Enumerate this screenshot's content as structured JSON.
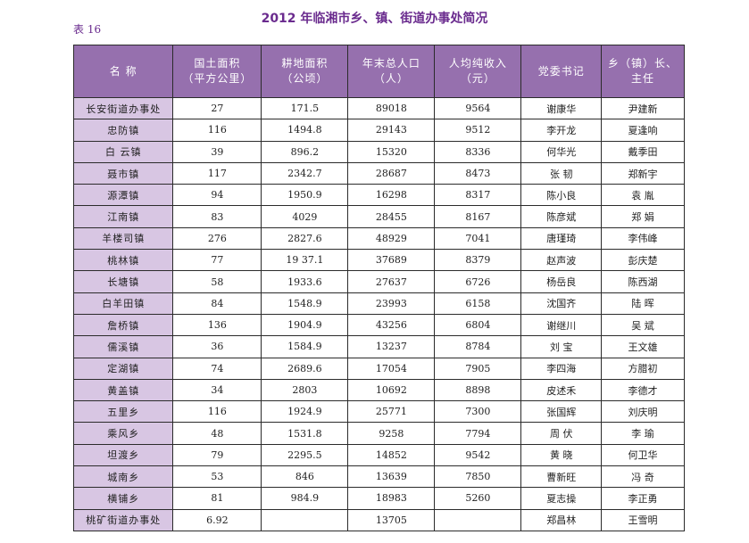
{
  "title": "2012 年临湘市乡、镇、街道办事处简况",
  "table_label": "表 16",
  "headers": [
    {
      "line1": "名  称",
      "line2": ""
    },
    {
      "line1": "国土面积",
      "line2": "（平方公里）"
    },
    {
      "line1": "耕地面积",
      "line2": "（公顷）"
    },
    {
      "line1": "年末总人口",
      "line2": "（人）"
    },
    {
      "line1": "人均纯收入",
      "line2": "（元）"
    },
    {
      "line1": "党委书记",
      "line2": ""
    },
    {
      "line1": "乡（镇）长、",
      "line2": "主任"
    }
  ],
  "rows": [
    [
      "长安街道办事处",
      "27",
      "171.5",
      "89018",
      "9564",
      "谢康华",
      "尹建新"
    ],
    [
      "忠防镇",
      "116",
      "1494.8",
      "29143",
      "9512",
      "李开龙",
      "夏逢响"
    ],
    [
      "白 云镇",
      "39",
      "896.2",
      "15320",
      "8336",
      "何华光",
      "戴季田"
    ],
    [
      "聂市镇",
      "117",
      "2342.7",
      "28687",
      "8473",
      "张  韧",
      "郑新宇"
    ],
    [
      "源潭镇",
      "94",
      "1950.9",
      "16298",
      "8317",
      "陈小良",
      "袁  胤"
    ],
    [
      "江南镇",
      "83",
      "4029",
      "28455",
      "8167",
      "陈彦斌",
      "郑  娟"
    ],
    [
      "羊楼司镇",
      "276",
      "2827.6",
      "48929",
      "7041",
      "唐瑾琦",
      "李伟峰"
    ],
    [
      "桃林镇",
      "77",
      "19 37.1",
      "37689",
      "8379",
      "赵声波",
      "彭庆楚"
    ],
    [
      "长塘镇",
      "58",
      "1933.6",
      "27637",
      "6726",
      "杨岳良",
      "陈西湖"
    ],
    [
      "白羊田镇",
      "84",
      "1548.9",
      "23993",
      "6158",
      "沈国齐",
      "陆  晖"
    ],
    [
      "詹桥镇",
      "136",
      "1904.9",
      "43256",
      "6804",
      "谢继川",
      "吴  斌"
    ],
    [
      "儒溪镇",
      "36",
      "1584.9",
      "13237",
      "8784",
      "刘  宝",
      "王文雄"
    ],
    [
      "定湖镇",
      "74",
      "2689.6",
      "17054",
      "7905",
      "李四海",
      "方腊初"
    ],
    [
      "黄盖镇",
      "34",
      "2803",
      "10692",
      "8898",
      "皮述禾",
      "李德才"
    ],
    [
      "五里乡",
      "116",
      "1924.9",
      "25771",
      "7300",
      "张国辉",
      "刘庆明"
    ],
    [
      "乘风乡",
      "48",
      "1531.8",
      "9258",
      "7794",
      "周  伏",
      "李  瑜"
    ],
    [
      "坦渡乡",
      "79",
      "2295.5",
      "14852",
      "9542",
      "黄  晓",
      "何卫华"
    ],
    [
      "城南乡",
      "53",
      "846",
      "13639",
      "7850",
      "曹新旺",
      "冯  奇"
    ],
    [
      "横铺乡",
      "81",
      "984.9",
      "18983",
      "5260",
      "夏志操",
      "李正勇"
    ],
    [
      "桃矿街道办事处",
      "6.92",
      "",
      "13705",
      "",
      "郑昌林",
      "王雪明"
    ]
  ]
}
